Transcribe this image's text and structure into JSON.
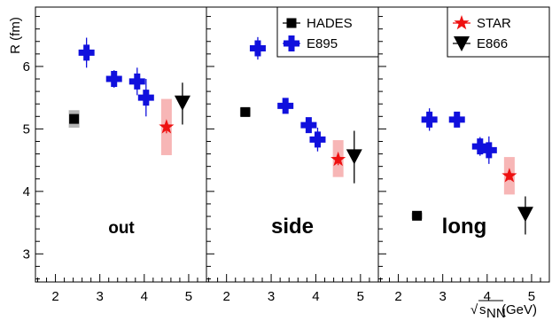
{
  "chart_data": {
    "type": "scatter",
    "ylabel": "R (fm)",
    "xlabel_prefix": "√",
    "xlabel_s": "s",
    "xlabel_sub": "NN",
    "xlabel_unit": " (GeV)",
    "xlim": [
      1.55,
      5.4
    ],
    "ylim": [
      2.55,
      6.95
    ],
    "x_ticks": [
      "2",
      "3",
      "4",
      "5"
    ],
    "y_ticks": [
      "3",
      "4",
      "5",
      "6"
    ],
    "legends": [
      [
        "HADES",
        "E895"
      ],
      [
        "STAR",
        "E866"
      ]
    ],
    "colors": {
      "HADES": "#000000",
      "E895": "#1010dd",
      "STAR": "#ee1111",
      "E866": "#000000",
      "HADES_sys": "#b4b4b4",
      "STAR_sys": "#f7b6b6"
    },
    "panels": [
      {
        "label": "out",
        "series": [
          {
            "name": "HADES",
            "marker": "square",
            "points": [
              {
                "x": 2.42,
                "y": 5.16,
                "yerr": 0.07,
                "sys": 0.14
              }
            ]
          },
          {
            "name": "E895",
            "marker": "cross",
            "points": [
              {
                "x": 2.7,
                "y": 6.22,
                "yerr": 0.24
              },
              {
                "x": 3.32,
                "y": 5.8,
                "yerr": 0.14
              },
              {
                "x": 3.84,
                "y": 5.76,
                "yerr": 0.22
              },
              {
                "x": 4.04,
                "y": 5.5,
                "yerr": 0.3
              }
            ]
          },
          {
            "name": "STAR",
            "marker": "star",
            "points": [
              {
                "x": 4.5,
                "y": 5.03,
                "yerr": 0.1,
                "sys_low": 4.58,
                "sys_high": 5.48
              }
            ]
          },
          {
            "name": "E866",
            "marker": "triangle-down",
            "points": [
              {
                "x": 4.86,
                "y": 5.42,
                "yerr_low": 0.35,
                "yerr_high": 0.32
              }
            ]
          }
        ]
      },
      {
        "label": "side",
        "series": [
          {
            "name": "HADES",
            "marker": "square",
            "points": [
              {
                "x": 2.42,
                "y": 5.27,
                "yerr": 0.05,
                "sys": 0.07
              }
            ]
          },
          {
            "name": "E895",
            "marker": "cross",
            "points": [
              {
                "x": 2.7,
                "y": 6.29,
                "yerr": 0.18
              },
              {
                "x": 3.32,
                "y": 5.37,
                "yerr": 0.08
              },
              {
                "x": 3.84,
                "y": 5.06,
                "yerr": 0.12
              },
              {
                "x": 4.04,
                "y": 4.83,
                "yerr": 0.19
              }
            ]
          },
          {
            "name": "STAR",
            "marker": "star",
            "points": [
              {
                "x": 4.5,
                "y": 4.51,
                "yerr": 0.09,
                "sys_low": 4.23,
                "sys_high": 4.82
              }
            ]
          },
          {
            "name": "E866",
            "marker": "triangle-down",
            "points": [
              {
                "x": 4.86,
                "y": 4.56,
                "yerr_low": 0.43,
                "yerr_high": 0.41
              }
            ]
          }
        ]
      },
      {
        "label": "long",
        "series": [
          {
            "name": "HADES",
            "marker": "square",
            "points": [
              {
                "x": 2.42,
                "y": 3.61,
                "yerr": 0.04,
                "sys": 0.05
              }
            ]
          },
          {
            "name": "E895",
            "marker": "cross",
            "points": [
              {
                "x": 2.7,
                "y": 5.15,
                "yerr": 0.18
              },
              {
                "x": 3.32,
                "y": 5.15,
                "yerr": 0.12
              },
              {
                "x": 3.84,
                "y": 4.72,
                "yerr": 0.15
              },
              {
                "x": 4.04,
                "y": 4.66,
                "yerr": 0.22
              }
            ]
          },
          {
            "name": "STAR",
            "marker": "star",
            "points": [
              {
                "x": 4.5,
                "y": 4.25,
                "yerr": 0.07,
                "sys_low": 3.95,
                "sys_high": 4.55
              }
            ]
          },
          {
            "name": "E866",
            "marker": "triangle-down",
            "points": [
              {
                "x": 4.86,
                "y": 3.64,
                "yerr_low": 0.33,
                "yerr_high": 0.28
              }
            ]
          }
        ]
      }
    ]
  }
}
